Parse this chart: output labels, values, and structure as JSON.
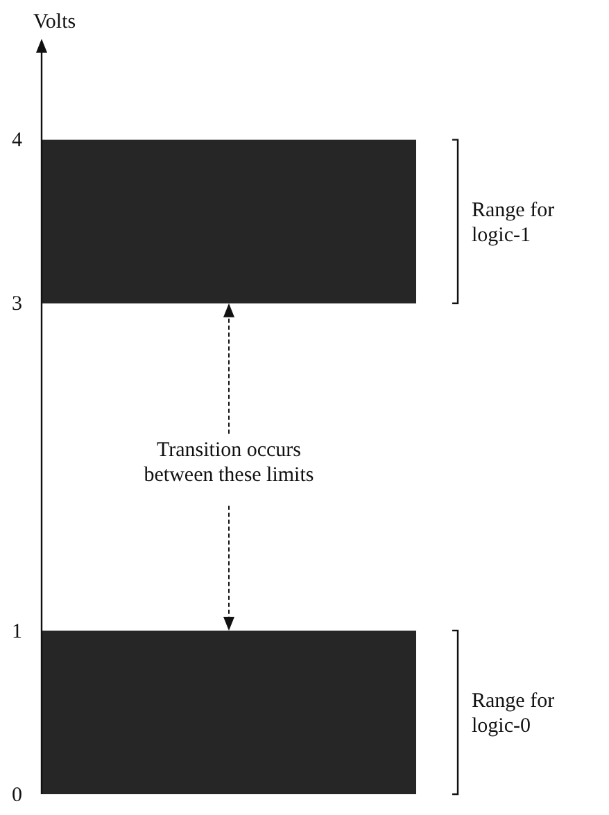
{
  "chart_data": {
    "type": "bar",
    "ylabel": "Volts",
    "ylim": [
      0,
      4.6
    ],
    "yticks": [
      0,
      1,
      3,
      4
    ],
    "categories": [
      null
    ],
    "series": [
      {
        "color": "#262626",
        "values": [
          1
        ],
        "base": [
          0
        ]
      },
      {
        "color": "#262626",
        "values": [
          1
        ],
        "base": [
          3
        ]
      }
    ],
    "annotations": [
      "Range for logic-0",
      "Range for logic-1",
      "Transition occurs between these limits"
    ]
  }
}
